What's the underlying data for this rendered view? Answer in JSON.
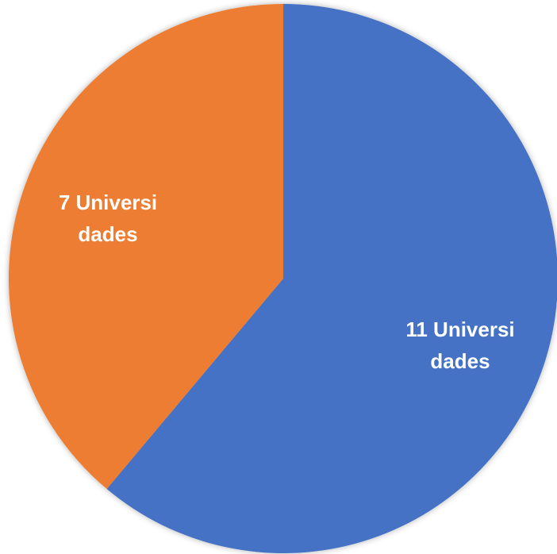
{
  "chart_data": {
    "type": "pie",
    "categories": [
      null,
      null
    ],
    "values": [
      11,
      7
    ],
    "value_labels": [
      "11 Universidades",
      "7 Universidades"
    ],
    "colors": [
      "#4472c4",
      "#ed7d31"
    ]
  }
}
